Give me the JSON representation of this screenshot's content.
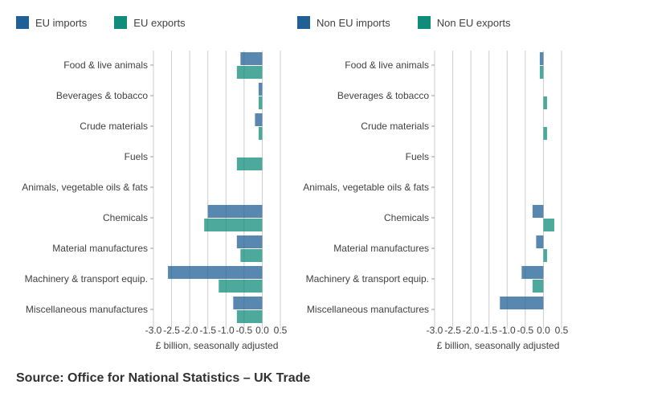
{
  "colors": {
    "imports": "#206095",
    "exports": "#118c7b",
    "grid": "#cccccc",
    "text": "#414042"
  },
  "source": "Source: Office for National Statistics – UK Trade",
  "chart_data": [
    {
      "type": "bar",
      "orientation": "horizontal",
      "title": "",
      "xlabel": "£ billion, seasonally adjusted",
      "xlim": [
        -3.0,
        0.5
      ],
      "xticks": [
        "-3.0",
        "-2.5",
        "-2.0",
        "-1.5",
        "-1.0",
        "-0.5",
        "0.0",
        "0.5"
      ],
      "grid": true,
      "legend_position": "top-left",
      "categories": [
        "Food & live animals",
        "Beverages & tobacco",
        "Crude materials",
        "Fuels",
        "Animals, vegetable oils & fats",
        "Chemicals",
        "Material manufactures",
        "Machinery & transport equip.",
        "Miscellaneous manufactures"
      ],
      "series": [
        {
          "name": "EU imports",
          "color": "#206095",
          "values": [
            -0.6,
            -0.1,
            -0.2,
            0.0,
            0.0,
            -1.5,
            -0.7,
            -2.6,
            -0.8
          ]
        },
        {
          "name": "EU exports",
          "color": "#118c7b",
          "values": [
            -0.7,
            -0.1,
            -0.1,
            -0.7,
            0.0,
            -1.6,
            -0.6,
            -1.2,
            -0.7
          ]
        }
      ]
    },
    {
      "type": "bar",
      "orientation": "horizontal",
      "title": "",
      "xlabel": "£ billion, seasonally adjusted",
      "xlim": [
        -3.0,
        0.5
      ],
      "xticks": [
        "-3.0",
        "-2.5",
        "-2.0",
        "-1.5",
        "-1.0",
        "-0.5",
        "0.0",
        "0.5"
      ],
      "grid": true,
      "legend_position": "top-left",
      "categories": [
        "Food & live animals",
        "Beverages & tobacco",
        "Crude materials",
        "Fuels",
        "Animals, vegetable oils & fats",
        "Chemicals",
        "Material manufactures",
        "Machinery & transport equip.",
        "Miscellaneous manufactures"
      ],
      "series": [
        {
          "name": "Non EU imports",
          "color": "#206095",
          "values": [
            -0.1,
            0.0,
            0.0,
            0.0,
            0.0,
            -0.3,
            -0.2,
            -0.6,
            -1.2
          ]
        },
        {
          "name": "Non EU exports",
          "color": "#118c7b",
          "values": [
            -0.1,
            0.1,
            0.1,
            0.0,
            0.0,
            0.3,
            0.1,
            -0.3,
            0.0
          ]
        }
      ]
    }
  ]
}
